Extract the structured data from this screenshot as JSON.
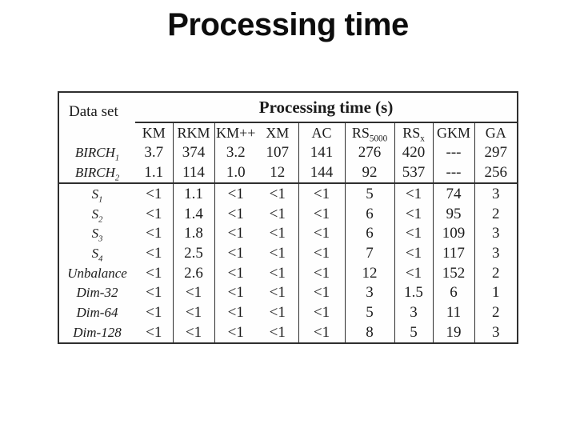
{
  "slide": {
    "title": "Processing time"
  },
  "chart_data": {
    "type": "table",
    "title": "Processing time",
    "corner_label": "Data set",
    "group_header": "Processing time (s)",
    "columns": [
      {
        "base": "KM",
        "sub": ""
      },
      {
        "base": "RKM",
        "sub": ""
      },
      {
        "base": "KM++",
        "sub": ""
      },
      {
        "base": "XM",
        "sub": ""
      },
      {
        "base": "AC",
        "sub": ""
      },
      {
        "base": "RS",
        "sub": "5000"
      },
      {
        "base": "RS",
        "sub": "x"
      },
      {
        "base": "GKM",
        "sub": ""
      },
      {
        "base": "GA",
        "sub": ""
      }
    ],
    "rows": [
      {
        "label": {
          "base": "BIRCH",
          "sub": "1"
        },
        "values": [
          "3.7",
          "374",
          "3.2",
          "107",
          "141",
          "276",
          "420",
          "---",
          "297"
        ]
      },
      {
        "label": {
          "base": "BIRCH",
          "sub": "2"
        },
        "values": [
          "1.1",
          "114",
          "1.0",
          "12",
          "144",
          "92",
          "537",
          "---",
          "256"
        ]
      },
      {
        "label": {
          "base": "S",
          "sub": "1"
        },
        "values": [
          "<1",
          "1.1",
          "<1",
          "<1",
          "<1",
          "5",
          "<1",
          "74",
          "3"
        ]
      },
      {
        "label": {
          "base": "S",
          "sub": "2"
        },
        "values": [
          "<1",
          "1.4",
          "<1",
          "<1",
          "<1",
          "6",
          "<1",
          "95",
          "2"
        ]
      },
      {
        "label": {
          "base": "S",
          "sub": "3"
        },
        "values": [
          "<1",
          "1.8",
          "<1",
          "<1",
          "<1",
          "6",
          "<1",
          "109",
          "3"
        ]
      },
      {
        "label": {
          "base": "S",
          "sub": "4"
        },
        "values": [
          "<1",
          "2.5",
          "<1",
          "<1",
          "<1",
          "7",
          "<1",
          "117",
          "3"
        ]
      },
      {
        "label": {
          "base": "Unbalance",
          "sub": ""
        },
        "values": [
          "<1",
          "2.6",
          "<1",
          "<1",
          "<1",
          "12",
          "<1",
          "152",
          "2"
        ]
      },
      {
        "label": {
          "base": "Dim-32",
          "sub": ""
        },
        "values": [
          "<1",
          "<1",
          "<1",
          "<1",
          "<1",
          "3",
          "1.5",
          "6",
          "1"
        ]
      },
      {
        "label": {
          "base": "Dim-64",
          "sub": ""
        },
        "values": [
          "<1",
          "<1",
          "<1",
          "<1",
          "<1",
          "5",
          "3",
          "11",
          "2"
        ]
      },
      {
        "label": {
          "base": "Dim-128",
          "sub": ""
        },
        "values": [
          "<1",
          "<1",
          "<1",
          "<1",
          "<1",
          "8",
          "5",
          "19",
          "3"
        ]
      }
    ]
  }
}
